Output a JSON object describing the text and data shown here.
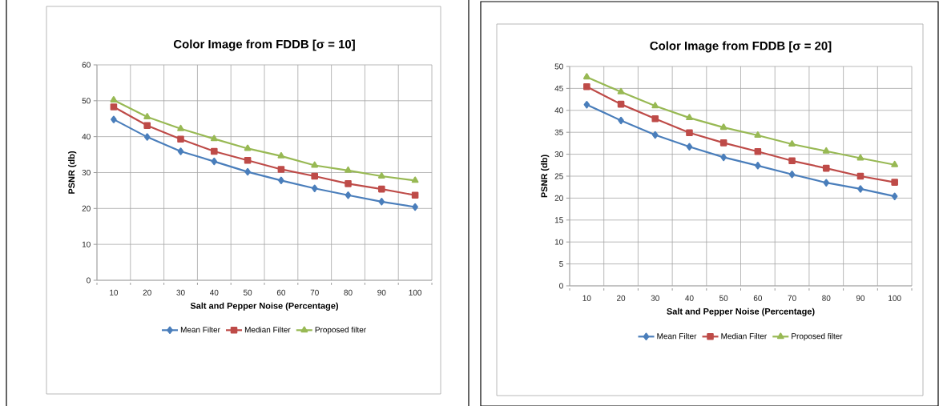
{
  "chart_data": [
    {
      "type": "line",
      "title": "Color Image from FDDB [σ = 10]",
      "xlabel": "Salt and Pepper Noise (Percentage)",
      "ylabel": "PSNR (db)",
      "categories": [
        "10",
        "20",
        "30",
        "40",
        "50",
        "60",
        "70",
        "80",
        "90",
        "100"
      ],
      "series": [
        {
          "name": "Mean Filter",
          "color": "#4a7ebb",
          "marker": "diamond",
          "values": [
            44.8,
            39.9,
            35.9,
            33.1,
            30.2,
            27.8,
            25.6,
            23.7,
            21.9,
            20.4
          ]
        },
        {
          "name": "Median Filter",
          "color": "#be4b48",
          "marker": "square",
          "values": [
            48.3,
            43.1,
            39.3,
            35.9,
            33.4,
            30.9,
            29.0,
            26.9,
            25.4,
            23.7
          ]
        },
        {
          "name": "Proposed filter",
          "color": "#98b954",
          "marker": "triangle",
          "values": [
            50.2,
            45.5,
            42.2,
            39.4,
            36.7,
            34.6,
            32.0,
            30.6,
            29.0,
            27.8
          ]
        }
      ],
      "ylim": [
        0,
        60
      ],
      "yticks": [
        0,
        10,
        20,
        30,
        40,
        50,
        60
      ],
      "grid": true,
      "legend": "bottom"
    },
    {
      "type": "line",
      "title": "Color Image from FDDB [σ = 20]",
      "xlabel": "Salt and Pepper Noise (Percentage)",
      "ylabel": "PSNR (db)",
      "categories": [
        "10",
        "20",
        "30",
        "40",
        "50",
        "60",
        "70",
        "80",
        "90",
        "100"
      ],
      "series": [
        {
          "name": "Mean Filter",
          "color": "#4a7ebb",
          "marker": "diamond",
          "values": [
            41.3,
            37.7,
            34.4,
            31.7,
            29.3,
            27.4,
            25.4,
            23.5,
            22.1,
            20.4
          ]
        },
        {
          "name": "Median Filter",
          "color": "#be4b48",
          "marker": "square",
          "values": [
            45.4,
            41.4,
            38.1,
            34.9,
            32.6,
            30.6,
            28.5,
            26.8,
            25.0,
            23.6
          ]
        },
        {
          "name": "Proposed filter",
          "color": "#98b954",
          "marker": "triangle",
          "values": [
            47.6,
            44.2,
            41.0,
            38.3,
            36.1,
            34.3,
            32.3,
            30.7,
            29.1,
            27.6
          ]
        }
      ],
      "ylim": [
        0,
        50
      ],
      "yticks": [
        0,
        5,
        10,
        15,
        20,
        25,
        30,
        35,
        40,
        45,
        50
      ],
      "grid": true,
      "legend": "bottom"
    }
  ]
}
